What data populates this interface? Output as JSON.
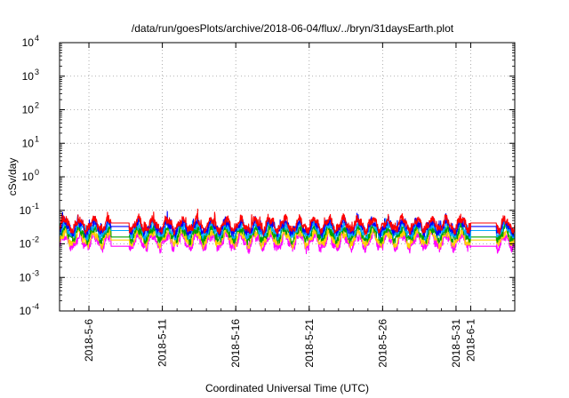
{
  "chart_data": {
    "type": "line",
    "title": "/data/run/goesPlots/archive/2018-06-04/flux/../bryn/31daysEarth.plot",
    "xlabel": "Coordinated Universal Time (UTC)",
    "ylabel": "cSv/day",
    "yscale": "log",
    "ylim": [
      0.0001,
      10000
    ],
    "xlim": [
      "2018-05-04",
      "2018-06-04"
    ],
    "grid": true,
    "y_ticks": [
      {
        "base": "10",
        "exp": "-4",
        "value": 0.0001
      },
      {
        "base": "10",
        "exp": "-3",
        "value": 0.001
      },
      {
        "base": "10",
        "exp": "-2",
        "value": 0.01
      },
      {
        "base": "10",
        "exp": "-1",
        "value": 0.1
      },
      {
        "base": "10",
        "exp": "0",
        "value": 1
      },
      {
        "base": "10",
        "exp": "1",
        "value": 10
      },
      {
        "base": "10",
        "exp": "2",
        "value": 100
      },
      {
        "base": "10",
        "exp": "3",
        "value": 1000
      },
      {
        "base": "10",
        "exp": "4",
        "value": 10000
      }
    ],
    "x_ticks": [
      {
        "label": "2018-5-6",
        "date": "2018-05-06"
      },
      {
        "label": "2018-5-11",
        "date": "2018-05-11"
      },
      {
        "label": "2018-5-16",
        "date": "2018-05-16"
      },
      {
        "label": "2018-5-21",
        "date": "2018-05-21"
      },
      {
        "label": "2018-5-26",
        "date": "2018-05-26"
      },
      {
        "label": "2018-5-31",
        "date": "2018-05-31"
      },
      {
        "label": "2018-6-1",
        "date": "2018-06-01"
      }
    ],
    "gaps": [
      [
        "2018-05-07T12:00",
        "2018-05-08T18:00"
      ],
      [
        "2018-06-01T00:00",
        "2018-06-02T18:00"
      ]
    ],
    "series": [
      {
        "color": "#ff0000",
        "base": 0.038,
        "amplitude": 1.0,
        "gap_level": 0.042
      },
      {
        "color": "#0000ff",
        "base": 0.032,
        "amplitude": 1.0,
        "gap_level": 0.033
      },
      {
        "color": "#00aaff",
        "base": 0.026,
        "amplitude": 1.0,
        "gap_level": 0.025
      },
      {
        "color": "#00a000",
        "base": 0.02,
        "amplitude": 1.05,
        "gap_level": 0.016
      },
      {
        "color": "#ffd000",
        "base": 0.015,
        "amplitude": 1.1,
        "gap_level": 0.013
      },
      {
        "color": "#ff00ff",
        "base": 0.012,
        "amplitude": 1.2,
        "gap_level": 0.0085
      }
    ]
  }
}
